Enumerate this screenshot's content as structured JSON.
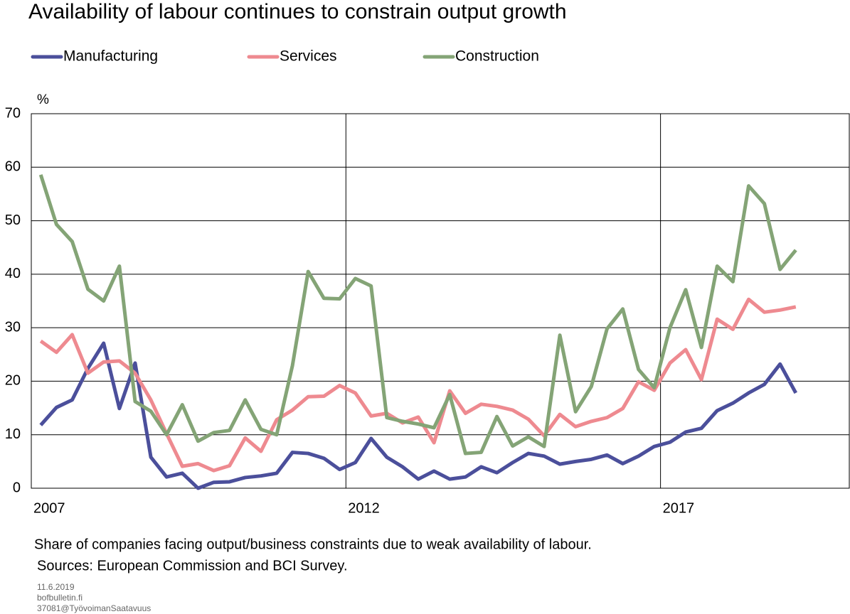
{
  "chart_data": {
    "type": "line",
    "title": "Availability of labour continues to constrain output growth",
    "y_unit": "%",
    "note": "Share of companies facing output/business constraints due to weak availability of labour.",
    "source": "Sources: European Commission and BCI Survey.",
    "footer": [
      "11.6.2019",
      "bofbulletin.fi",
      "37081@TyövoimanSaatavuus"
    ],
    "x": [
      2007.15,
      2007.4,
      2007.65,
      2007.9,
      2008.15,
      2008.4,
      2008.65,
      2008.9,
      2009.15,
      2009.4,
      2009.65,
      2009.9,
      2010.15,
      2010.4,
      2010.65,
      2010.9,
      2011.15,
      2011.4,
      2011.65,
      2011.9,
      2012.15,
      2012.4,
      2012.65,
      2012.9,
      2013.15,
      2013.4,
      2013.65,
      2013.9,
      2014.15,
      2014.4,
      2014.65,
      2014.9,
      2015.15,
      2015.4,
      2015.65,
      2015.9,
      2016.15,
      2016.4,
      2016.65,
      2016.9,
      2017.15,
      2017.4,
      2017.65,
      2017.9,
      2018.15,
      2018.4,
      2018.65,
      2018.9,
      2019.15
    ],
    "series": [
      {
        "name": "Manufacturing",
        "color": "#4b4f9b",
        "values": [
          11.8,
          15.1,
          16.5,
          22.4,
          27.1,
          14.9,
          23.4,
          5.8,
          2.1,
          2.8,
          0,
          1.1,
          1.2,
          2.0,
          2.3,
          2.8,
          6.7,
          6.5,
          5.6,
          3.5,
          4.8,
          9.3,
          5.8,
          4.0,
          1.7,
          3.2,
          1.7,
          2.1,
          4.0,
          2.9,
          4.8,
          6.5,
          6.0,
          4.5,
          5.0,
          5.4,
          6.2,
          4.6,
          6.0,
          7.8,
          8.6,
          10.5,
          11.2,
          14.5,
          15.9,
          17.8,
          19.4,
          23.2,
          17.8
        ]
      },
      {
        "name": "Services",
        "color": "#ee8a90",
        "values": [
          27.5,
          25.4,
          28.7,
          21.5,
          23.6,
          23.8,
          21.5,
          16.5,
          10.2,
          4.1,
          4.6,
          3.3,
          4.2,
          9.4,
          6.9,
          12.8,
          14.6,
          17.1,
          17.2,
          19.2,
          17.8,
          13.5,
          14.0,
          12.2,
          13.3,
          8.5,
          18.2,
          14.0,
          15.7,
          15.3,
          14.6,
          12.9,
          9.8,
          13.8,
          11.5,
          12.5,
          13.2,
          14.9,
          19.9,
          18.3,
          23.4,
          25.9,
          20.3,
          31.6,
          29.7,
          35.3,
          32.9,
          33.3,
          33.9
        ]
      },
      {
        "name": "Construction",
        "color": "#84a476",
        "values": [
          58.6,
          49.3,
          46.1,
          37.2,
          35.0,
          41.5,
          16.2,
          14.4,
          10.0,
          15.6,
          8.8,
          10.4,
          10.8,
          16.5,
          11.0,
          10.0,
          22.9,
          40.5,
          35.5,
          35.4,
          39.2,
          37.8,
          13.2,
          12.5,
          12.0,
          11.3,
          17.5,
          6.5,
          6.7,
          13.4,
          7.9,
          9.6,
          7.8,
          28.6,
          14.3,
          19.0,
          29.8,
          33.5,
          22.2,
          18.8,
          30.0,
          37.1,
          26.3,
          41.5,
          38.6,
          56.5,
          53.2,
          40.9,
          44.5
        ]
      }
    ],
    "xlim": [
      2007,
      2020
    ],
    "xticks": [
      2007,
      2012,
      2017
    ],
    "ylim": [
      0,
      70
    ],
    "yticks": [
      0,
      10,
      20,
      30,
      40,
      50,
      60,
      70
    ],
    "grid": true
  }
}
